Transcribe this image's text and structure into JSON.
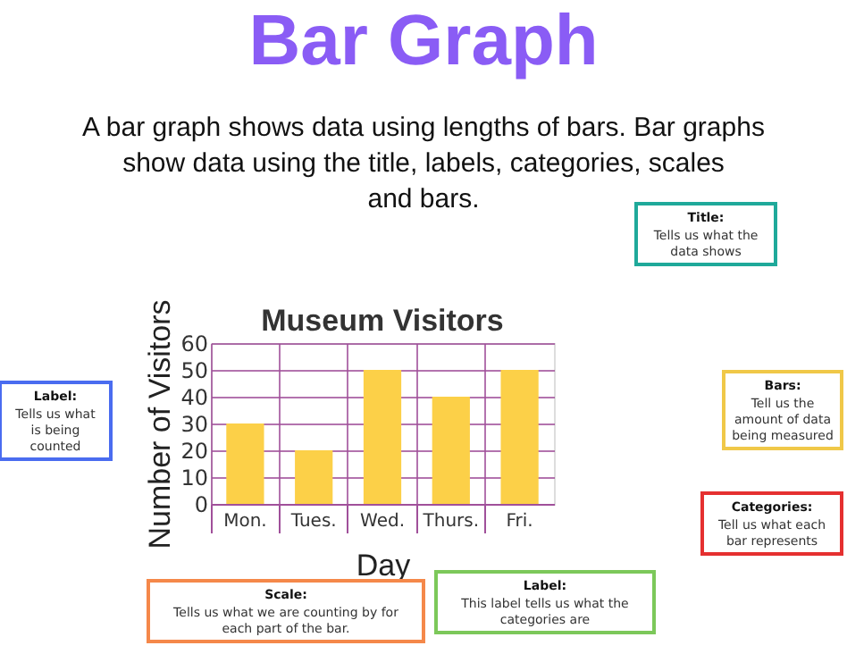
{
  "chart_data": {
    "type": "bar",
    "title": "Museum Visitors",
    "xlabel": "Day",
    "ylabel": "Number of Visitors",
    "categories": [
      "Mon.",
      "Tues.",
      "Wed.",
      "Thurs.",
      "Fri."
    ],
    "values": [
      30,
      20,
      50,
      40,
      50
    ],
    "color": "#fcd048",
    "ylim": [
      0,
      60
    ],
    "yticks": [
      0,
      10,
      20,
      30,
      40,
      50,
      60
    ],
    "grid": true,
    "annotations": [
      "Bar Graph",
      "A bar graph shows data using lengths of bars. Bar graphs show data using the title, labels, categories, scales and bars.",
      "Title: Tells us what the data shows",
      "Label: Tells us what is being counted",
      "Bars: Tell us the amount of data being measured",
      "Categories: Tell us what each bar represents",
      "Label: This label tells us what the categories are",
      "Scale: Tells us what we are counting by for each part of the bar."
    ]
  }
}
